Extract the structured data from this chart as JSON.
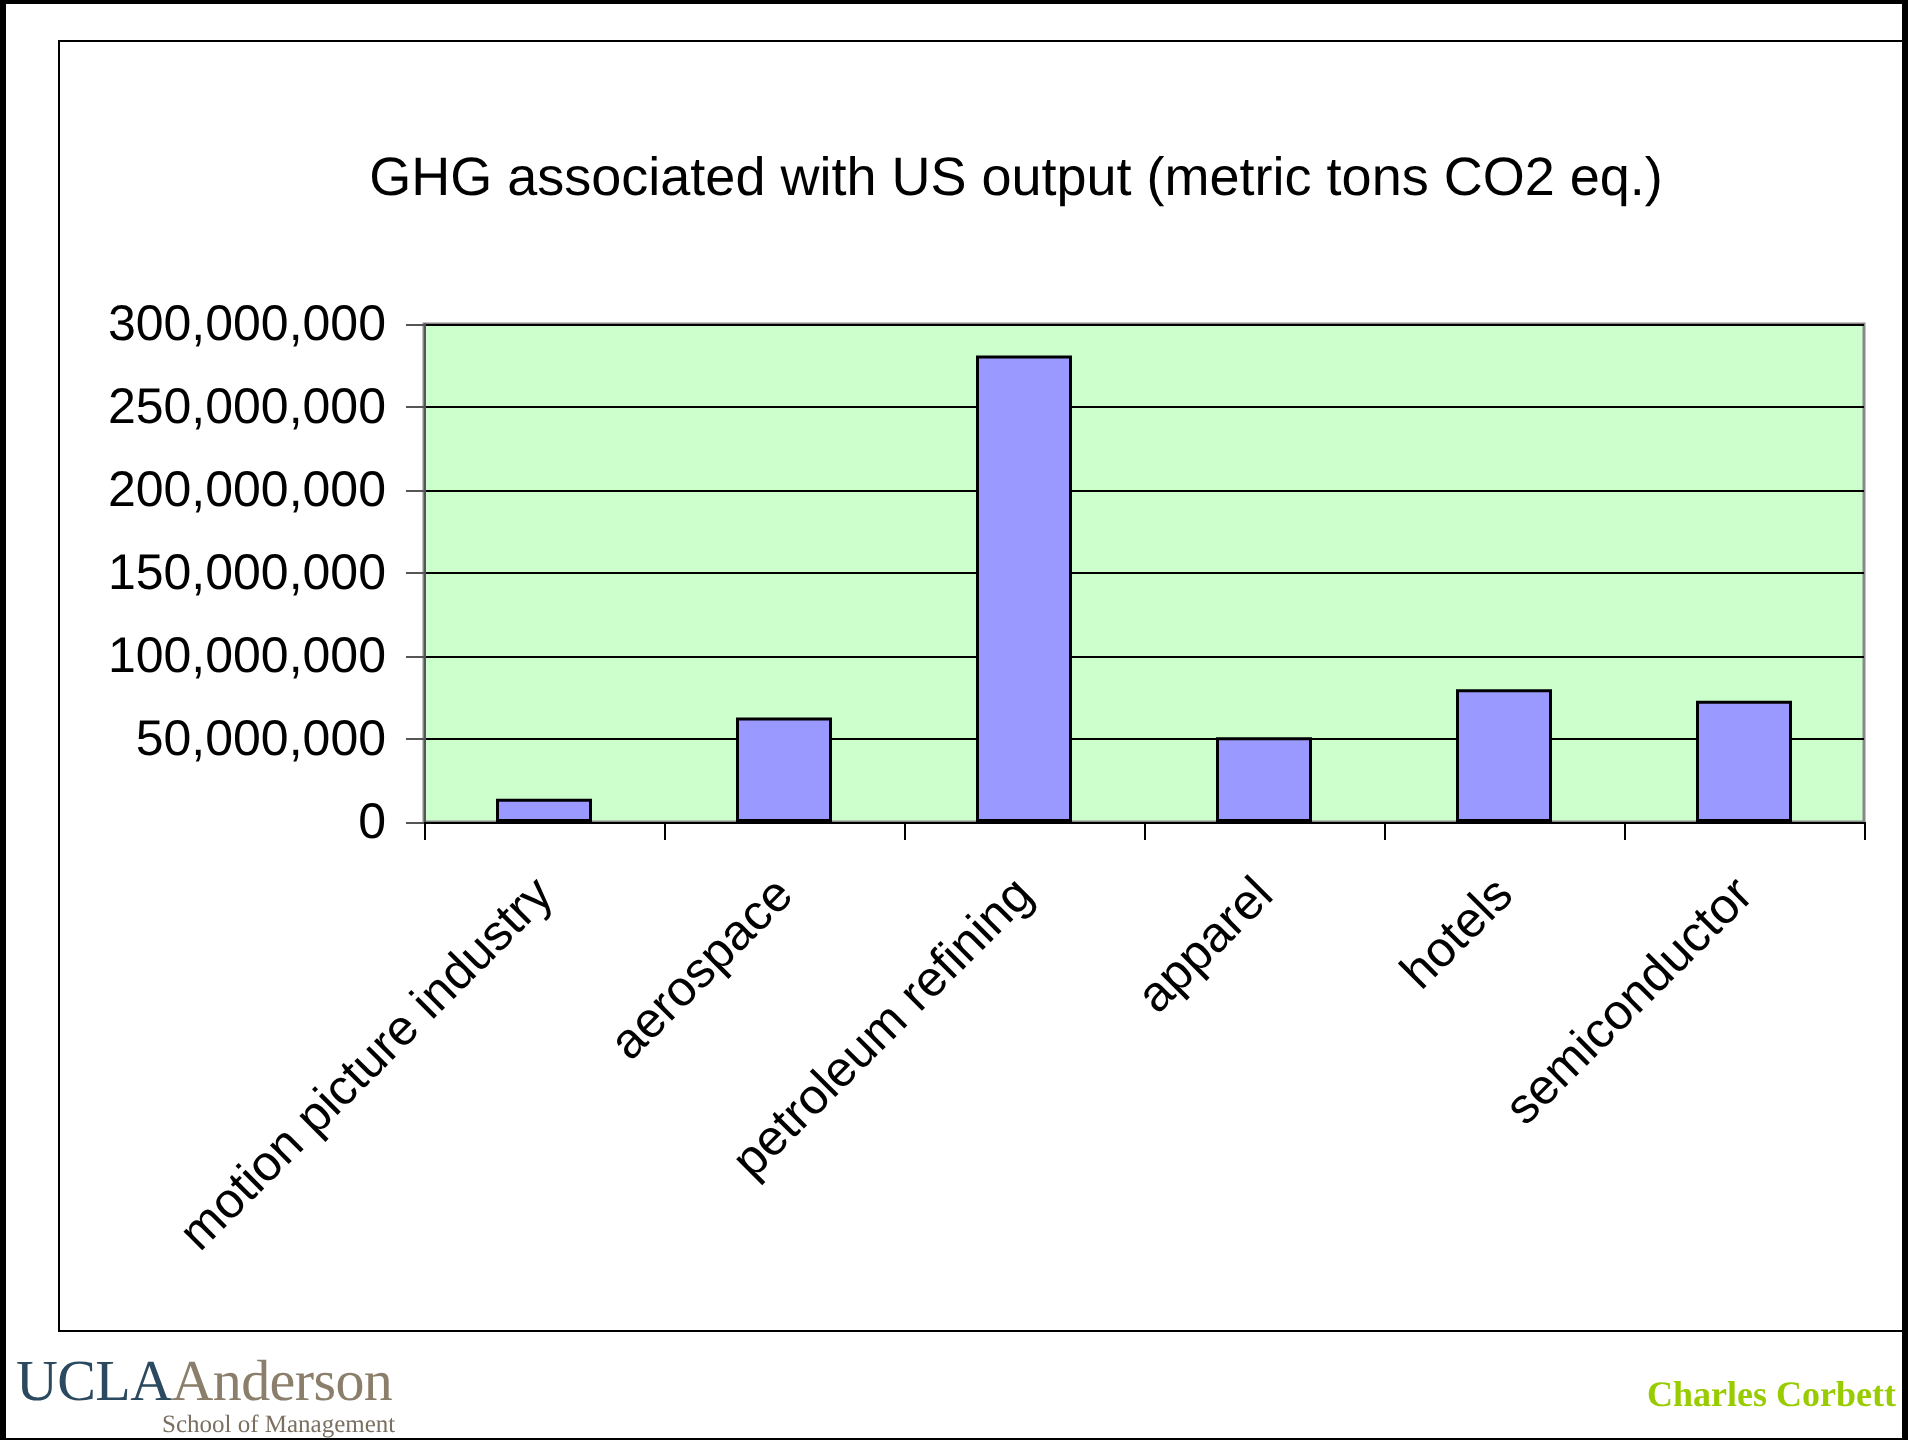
{
  "chart_data": {
    "type": "bar",
    "title": "GHG associated with US output (metric tons CO2 eq.)",
    "categories": [
      "motion picture industry",
      "aerospace",
      "petroleum refining",
      "apparel",
      "hotels",
      "semiconductor"
    ],
    "values": [
      14000000,
      63000000,
      281000000,
      51000000,
      80000000,
      73000000
    ],
    "color": "#9999ff",
    "ylim": [
      0,
      300000000
    ],
    "yticks": [
      0,
      {
        "value": 50000000,
        "label": "50,000,000"
      },
      {
        "value": 100000000,
        "label": "100,000,000"
      },
      {
        "value": 150000000,
        "label": "150,000,000"
      },
      {
        "value": 200000000,
        "label": "200,000,000"
      },
      {
        "value": 250000000,
        "label": "250,000,000"
      },
      {
        "value": 300000000,
        "label": "300,000,000"
      }
    ],
    "grid": "y",
    "annotations": [
      "UCLA",
      "Anderson",
      "School of Management",
      "Charles Corbett"
    ]
  }
}
